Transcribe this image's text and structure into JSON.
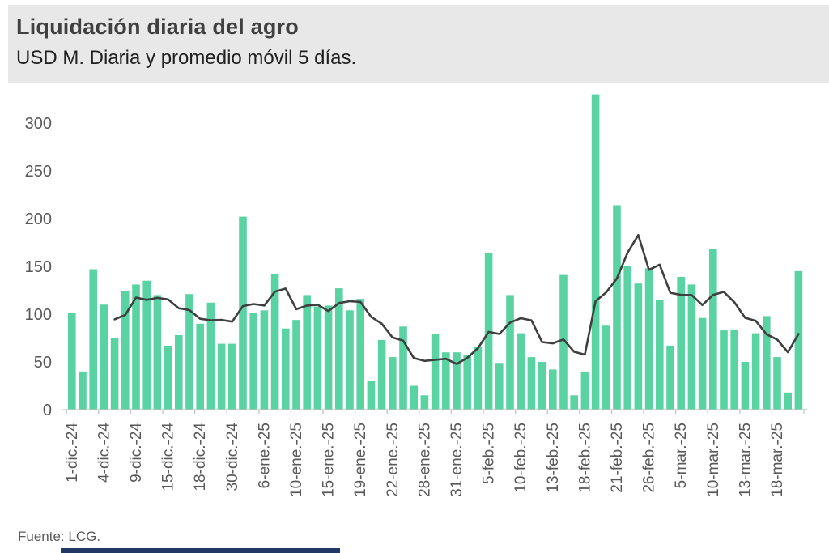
{
  "header": {
    "title": "Liquidación diaria del agro",
    "subtitle": "USD M. Diaria y promedio móvil 5 días."
  },
  "footer": {
    "source": "Fuente: LCG."
  },
  "colors": {
    "header_band": "#e8e8e8",
    "bar": "#59d3a2",
    "moving_average_line": "#3f3f3f",
    "axis": "#c3c3c3",
    "tick_text": "#595959",
    "bottom_accent": "#203864"
  },
  "chart_data": {
    "type": "bar",
    "title": "Liquidación diaria del agro",
    "subtitle": "USD M. Diaria y promedio móvil 5 días.",
    "unit": "USD M",
    "series_note": "green bars = daily agro-export FX settlement; dark line = 5-day moving average computed over the bars",
    "moving_average_window": 5,
    "values": [
      101,
      40,
      147,
      110,
      75,
      124,
      131,
      135,
      120,
      67,
      78,
      121,
      90,
      112,
      69,
      69,
      202,
      101,
      104,
      142,
      85,
      94,
      120,
      108,
      109,
      127,
      104,
      116,
      30,
      73,
      55,
      87,
      25,
      15,
      79,
      60,
      60,
      57,
      66,
      164,
      49,
      120,
      80,
      55,
      50,
      42,
      141,
      15,
      40,
      330,
      88,
      214,
      150,
      132,
      148,
      115,
      67,
      139,
      131,
      96,
      168,
      83,
      84,
      50,
      80,
      98,
      55,
      18,
      145
    ],
    "x_tick_labels": [
      "1-dic.-24",
      "4-dic.-24",
      "9-dic.-24",
      "15-dic.-24",
      "18-dic.-24",
      "30-dic.-24",
      "6-ene.-25",
      "10-ene.-25",
      "15-ene.-25",
      "19-ene.-25",
      "22-ene.-25",
      "28-ene.-25",
      "31-ene.-25",
      "5-feb.-25",
      "10-feb.-25",
      "13-feb.-25",
      "18-feb.-25",
      "21-feb.-25",
      "26-feb.-25",
      "5-mar.-25",
      "10-mar.-25",
      "13-mar.-25",
      "18-mar.-25"
    ],
    "tick_every_n_bars": 3,
    "yticks": [
      0,
      50,
      100,
      150,
      200,
      250,
      300
    ],
    "ylim": [
      0,
      335
    ],
    "grid": false,
    "legend": false,
    "bar_color": "#59d3a2",
    "line_color": "#3f3f3f"
  }
}
